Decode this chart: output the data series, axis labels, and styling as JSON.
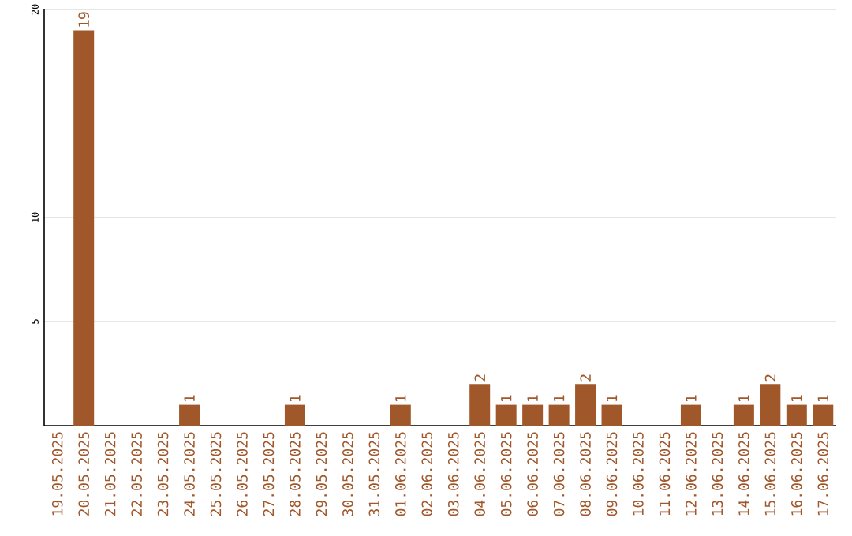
{
  "chart_data": {
    "type": "bar",
    "categories": [
      "19.05.2025",
      "20.05.2025",
      "21.05.2025",
      "22.05.2025",
      "23.05.2025",
      "24.05.2025",
      "25.05.2025",
      "26.05.2025",
      "27.05.2025",
      "28.05.2025",
      "29.05.2025",
      "30.05.2025",
      "31.05.2025",
      "01.06.2025",
      "02.06.2025",
      "03.06.2025",
      "04.06.2025",
      "05.06.2025",
      "06.06.2025",
      "07.06.2025",
      "08.06.2025",
      "09.06.2025",
      "10.06.2025",
      "11.06.2025",
      "12.06.2025",
      "13.06.2025",
      "14.06.2025",
      "15.06.2025",
      "16.06.2025",
      "17.06.2025"
    ],
    "values": [
      0,
      19,
      0,
      0,
      0,
      1,
      0,
      0,
      0,
      1,
      0,
      0,
      0,
      1,
      0,
      0,
      2,
      1,
      1,
      1,
      2,
      1,
      0,
      0,
      1,
      0,
      1,
      2,
      1,
      1
    ],
    "value_labels": [
      null,
      "19",
      null,
      null,
      null,
      "1",
      null,
      null,
      null,
      "1",
      null,
      null,
      null,
      "1",
      null,
      null,
      "2",
      "1",
      "1",
      "1",
      "2",
      "1",
      null,
      null,
      "1",
      null,
      "1",
      "2",
      "1",
      "1"
    ],
    "color": "#a0572a",
    "ylim": [
      0,
      20
    ],
    "yticks": [
      5,
      10,
      20
    ],
    "grid": "y"
  }
}
